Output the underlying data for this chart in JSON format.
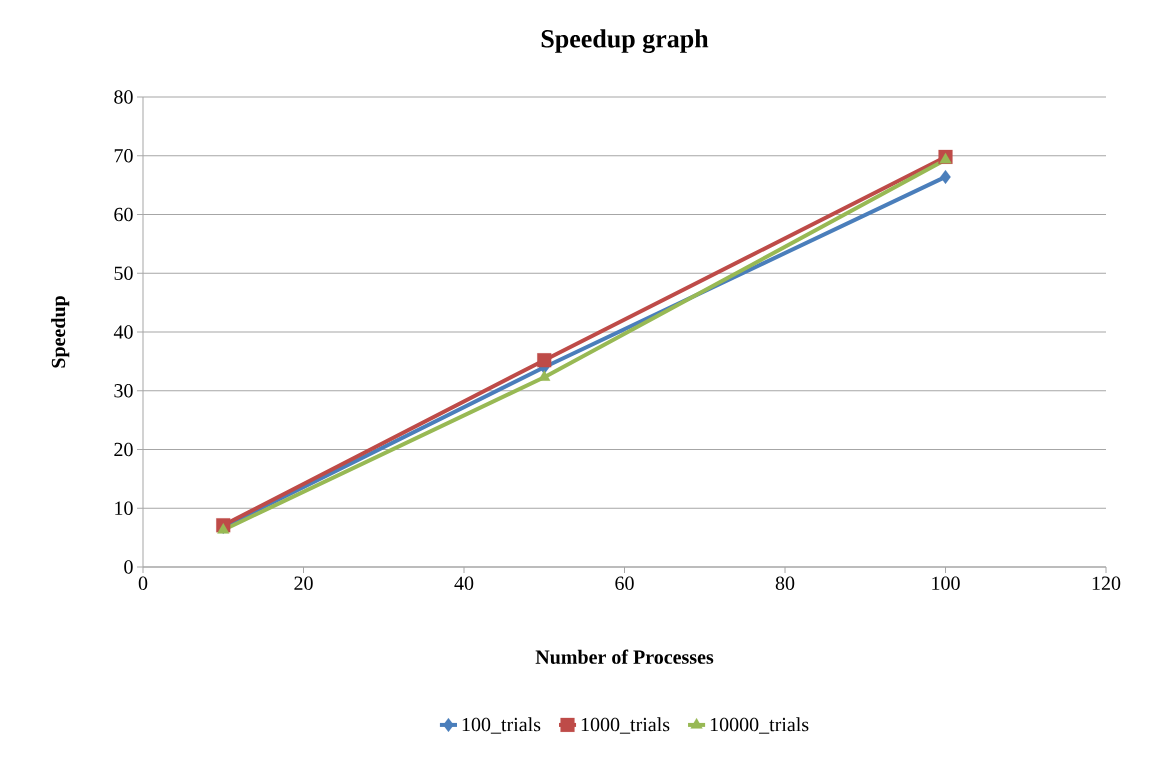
{
  "chart_data": {
    "type": "line",
    "title": "Speedup graph",
    "xlabel": "Number of Processes",
    "ylabel": "Speedup",
    "x": [
      10,
      50,
      100
    ],
    "series": [
      {
        "name": "100_trials",
        "color": "#4a7ebb",
        "marker": "diamond",
        "values": [
          6.8,
          34,
          66.4
        ]
      },
      {
        "name": "1000_trials",
        "color": "#be4b48",
        "marker": "square",
        "values": [
          7.1,
          35.2,
          69.8
        ]
      },
      {
        "name": "10000_trials",
        "color": "#98b954",
        "marker": "triangle",
        "values": [
          6.3,
          32.3,
          69.3
        ]
      }
    ],
    "xlim": [
      0,
      120
    ],
    "xticks": [
      0,
      20,
      40,
      60,
      80,
      100,
      120
    ],
    "ylim": [
      0,
      80
    ],
    "yticks": [
      0,
      10,
      20,
      30,
      40,
      50,
      60,
      70,
      80
    ],
    "grid": "y",
    "legend": "bottom",
    "line_style": "solid"
  }
}
